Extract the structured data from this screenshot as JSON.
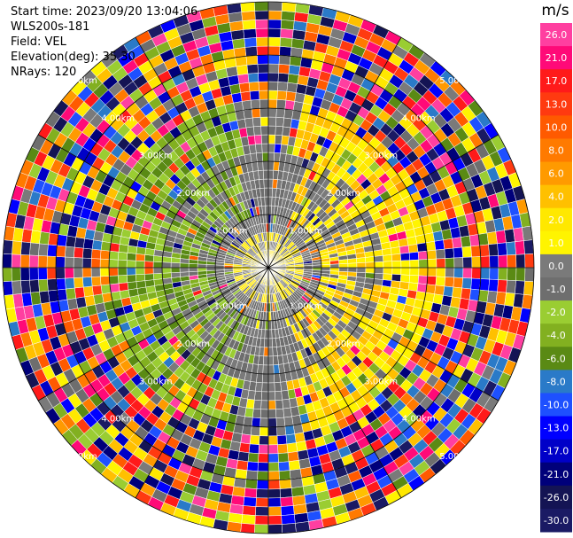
{
  "info": {
    "start_time": "Start time: 2023/09/20 13:04:06",
    "station": "WLS200s-181",
    "field": "Field: VEL",
    "elevation": "Elevation(deg): 35.30",
    "nrays": "NRays: 120"
  },
  "colorbar": {
    "title": "m/s",
    "ticks": [
      "26.0",
      "21.0",
      "17.0",
      "13.0",
      "10.0",
      "8.0",
      "6.0",
      "4.0",
      "2.0",
      "1.0",
      "0.0",
      "-1.0",
      "-2.0",
      "-4.0",
      "-6.0",
      "-8.0",
      "-10.0",
      "-13.0",
      "-17.0",
      "-21.0",
      "-26.0",
      "-30.0"
    ],
    "colors": [
      "#ff3fa0",
      "#ff0a78",
      "#ff1a1a",
      "#ff3a10",
      "#ff5a00",
      "#ff7a00",
      "#ff9a00",
      "#ffc000",
      "#ffe800",
      "#fff400",
      "#7a7a7a",
      "#6e6e6e",
      "#9acd32",
      "#82b020",
      "#5a8a14",
      "#2a7ac8",
      "#1e50ff",
      "#0000ff",
      "#0000c8",
      "#00007a",
      "#141454",
      "#1a1a64"
    ]
  },
  "chart_data": {
    "type": "ppi",
    "field": "VEL",
    "units": "m/s",
    "nrays": 120,
    "ring_labels": [
      "1.00km",
      "2.00km",
      "3.00km",
      "4.00km",
      "5.00km"
    ],
    "value_range": [
      -30.0,
      26.0
    ],
    "pattern": {
      "inner_shaded": "gray",
      "near_field_positive_side": "east",
      "near_field_negative_side": "west",
      "far_field": "noisy (all colors)"
    }
  }
}
